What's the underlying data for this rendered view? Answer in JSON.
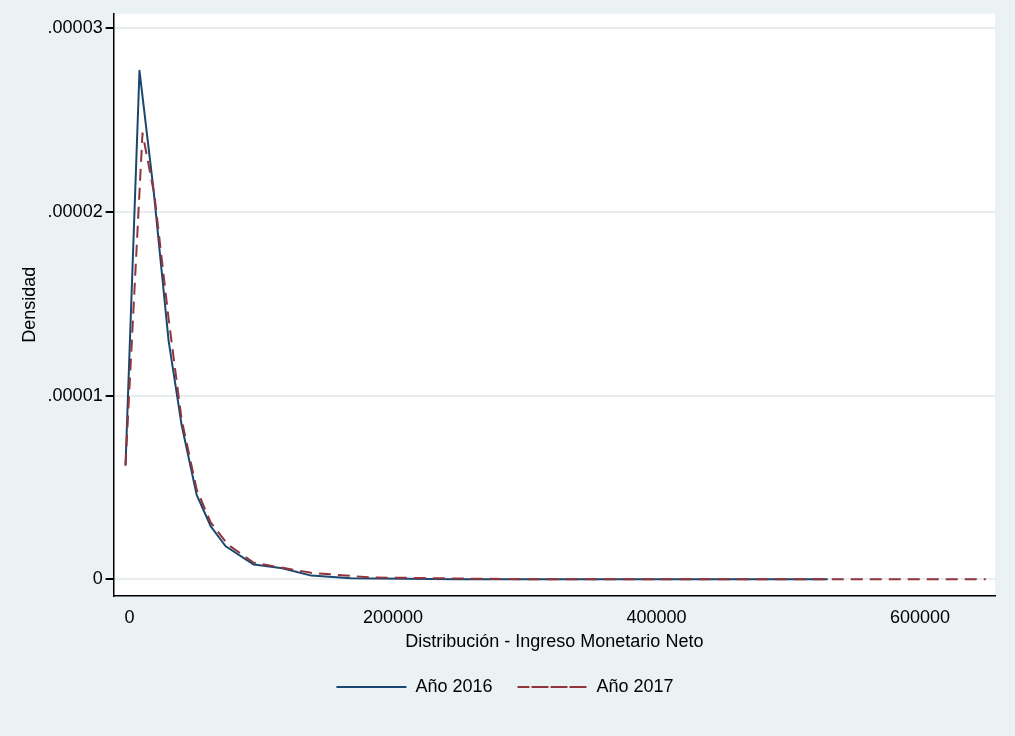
{
  "chart_data": {
    "type": "line",
    "xlabel": "Distribución - Ingreso Monetario Neto",
    "ylabel": "Densidad",
    "xlim": [
      -12000,
      657000
    ],
    "xticks": [
      0,
      200000,
      400000,
      600000
    ],
    "ylim": [
      -9e-07,
      3.08e-05
    ],
    "yticks": [
      0,
      {
        "value": 1e-05,
        "label": ".00001"
      },
      {
        "value": 2e-05,
        "label": ".00002"
      },
      {
        "value": 3e-05,
        "label": ".00003"
      }
    ],
    "grid": "y",
    "legend": "bottom",
    "marker": "none",
    "series": [
      {
        "name": "Año 2016",
        "color": "#1a476f",
        "line_style": "solid",
        "x": [
          -3000,
          7600,
          18300,
          29700,
          39600,
          51000,
          61600,
          73000,
          94400,
          116000,
          138000,
          168000,
          250000,
          350000,
          450000,
          530000
        ],
        "values": [
          6.2e-06,
          2.77e-05,
          2.12e-05,
          1.3e-05,
          8.4e-06,
          4.6e-06,
          2.9e-06,
          1.8e-06,
          8e-07,
          6e-07,
          2e-07,
          5e-08,
          0,
          0,
          0,
          0
        ]
      },
      {
        "name": "Año 2017",
        "color": "#90353b",
        "line_style": "dashed",
        "x": [
          -3000,
          9900,
          19000,
          29700,
          39600,
          51000,
          61600,
          74500,
          94400,
          138000,
          183000,
          300000,
          450000,
          650000
        ],
        "values": [
          6.2e-06,
          2.43e-05,
          2.09e-05,
          1.42e-05,
          8.7e-06,
          4.9e-06,
          3.1e-06,
          1.9e-06,
          9e-07,
          3.5e-07,
          1e-07,
          0,
          0,
          0
        ]
      }
    ]
  }
}
